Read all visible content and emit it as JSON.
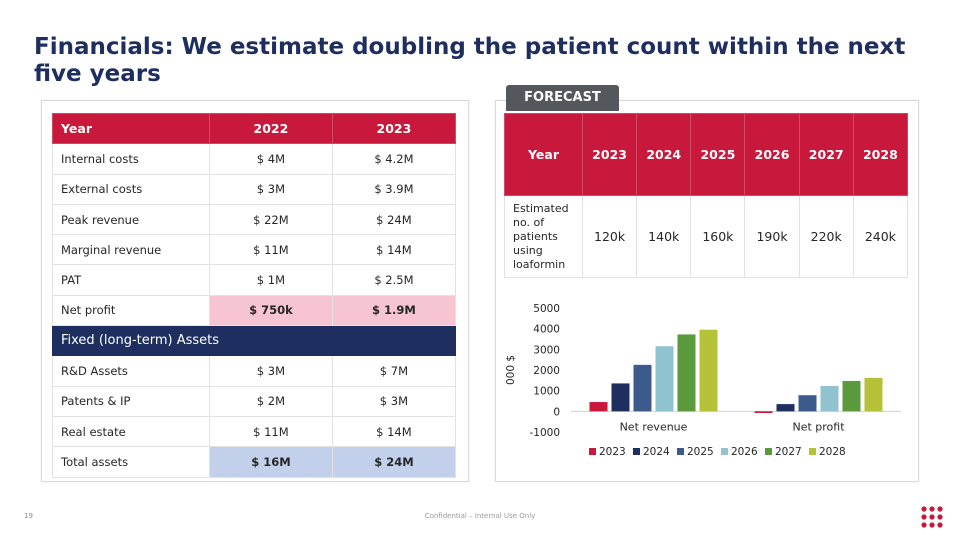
{
  "title": "Financials: We estimate doubling the patient count within the next five years",
  "financials": {
    "header": {
      "label": "Year",
      "col1": "2022",
      "col2": "2023"
    },
    "rows": [
      {
        "label": "Internal costs",
        "v1": "$ 4M",
        "v2": "$ 4.2M"
      },
      {
        "label": "External costs",
        "v1": "$ 3M",
        "v2": "$ 3.9M"
      },
      {
        "label": "Peak revenue",
        "v1": "$ 22M",
        "v2": "$ 24M"
      },
      {
        "label": "Marginal revenue",
        "v1": "$ 11M",
        "v2": "$ 14M"
      },
      {
        "label": "PAT",
        "v1": "$ 1M",
        "v2": "$ 2.5M"
      },
      {
        "label": "Net profit",
        "v1": "$ 750k",
        "v2": "$ 1.9M"
      }
    ],
    "section_label": "Fixed (long-term) Assets",
    "asset_rows": [
      {
        "label": "R&D Assets",
        "v1": "$ 3M",
        "v2": "$ 7M"
      },
      {
        "label": "Patents & IP",
        "v1": "$ 2M",
        "v2": "$ 3M"
      },
      {
        "label": "Real estate",
        "v1": "$ 11M",
        "v2": "$ 14M"
      },
      {
        "label": "Total assets",
        "v1": "$ 16M",
        "v2": "$ 24M"
      }
    ]
  },
  "forecast": {
    "badge": "FORECAST",
    "header_label": "Year",
    "years": [
      "2023",
      "2024",
      "2025",
      "2026",
      "2027",
      "2028"
    ],
    "row_label": "Estimated no. of patients using loaformin",
    "values": [
      "120k",
      "140k",
      "160k",
      "190k",
      "220k",
      "240k"
    ]
  },
  "chart_data": {
    "type": "bar",
    "categories": [
      "Net revenue",
      "Net profit"
    ],
    "series": [
      {
        "name": "2023",
        "values": [
          450,
          -80
        ],
        "color": "#c8193c"
      },
      {
        "name": "2024",
        "values": [
          1350,
          350
        ],
        "color": "#1e2f5f"
      },
      {
        "name": "2025",
        "values": [
          2250,
          780
        ],
        "color": "#3d5a8c"
      },
      {
        "name": "2026",
        "values": [
          3150,
          1230
        ],
        "color": "#8fc3cf"
      },
      {
        "name": "2027",
        "values": [
          3720,
          1470
        ],
        "color": "#5a9a3c"
      },
      {
        "name": "2028",
        "values": [
          3950,
          1620
        ],
        "color": "#b5c238"
      }
    ],
    "ylabel": "000 $",
    "ylim": [
      -1000,
      5000
    ],
    "yticks": [
      "5000",
      "4000",
      "3000",
      "2000",
      "1000",
      "0",
      "-1000"
    ],
    "legend": "bottom",
    "grid": false
  },
  "footer": {
    "page": "19",
    "confidential": "Confidential – Internal Use Only"
  },
  "colors": {
    "brand_red": "#c8193c",
    "navy": "#1e2f5f",
    "pink": "#f7c4d2",
    "light_blue": "#c3d0eb"
  }
}
